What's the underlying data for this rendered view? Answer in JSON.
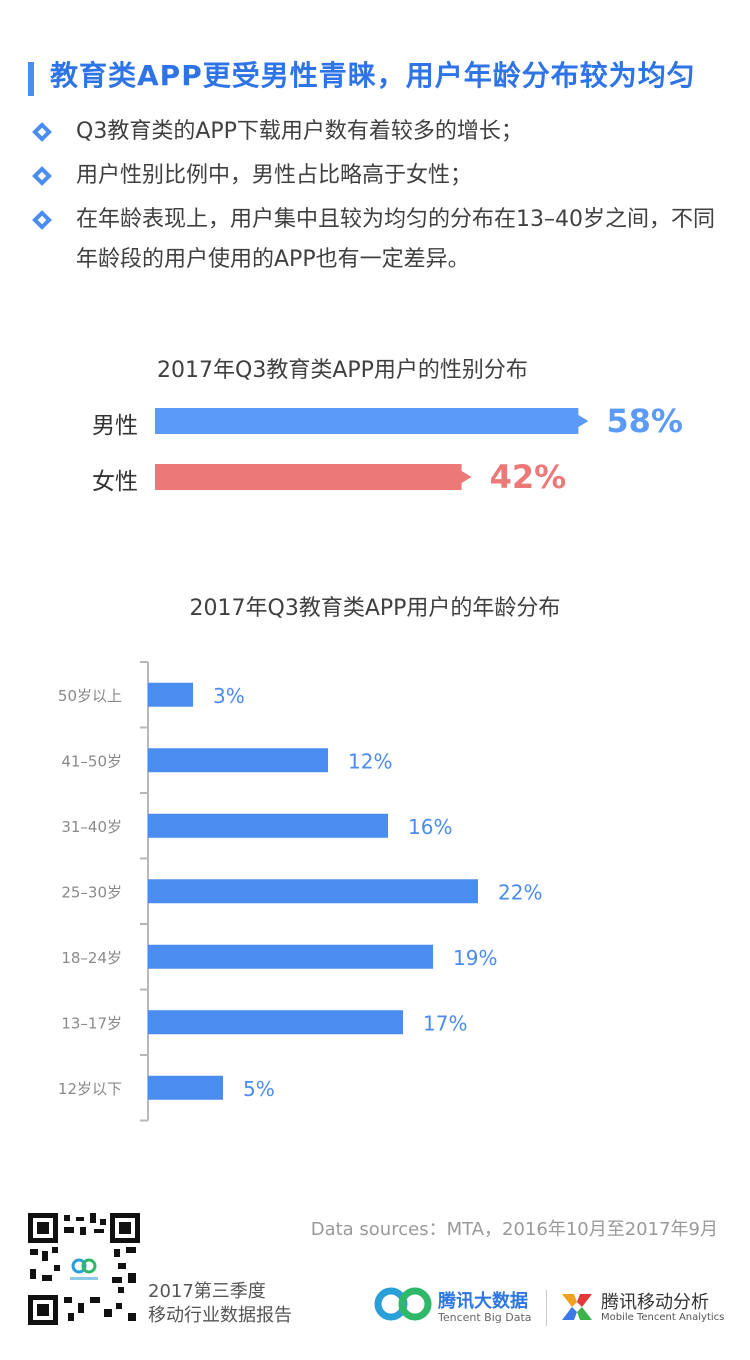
{
  "header": {
    "title": "教育类APP更受男性青睐，用户年龄分布较为均匀",
    "bullets": [
      "Q3教育类的APP下载用户数有着较多的增长；",
      "用户性别比例中，男性占比略高于女性；",
      "在年龄表现上，用户集中且较为均匀的分布在13–40岁之间，不同年龄段的用户使用的APP也有一定差异。"
    ]
  },
  "chart_data": [
    {
      "type": "bar",
      "title": "2017年Q3教育类APP用户的性别分布",
      "categories": [
        "男性",
        "女性"
      ],
      "values": [
        58,
        42
      ],
      "value_labels": [
        "58%",
        "42%"
      ],
      "colors": [
        "#5b9bf7",
        "#ec7878"
      ],
      "orientation": "horizontal"
    },
    {
      "type": "bar",
      "title": "2017年Q3教育类APP用户的年龄分布",
      "categories": [
        "50岁以上",
        "41–50岁",
        "31–40岁",
        "25–30岁",
        "18–24岁",
        "13–17岁",
        "12岁以下"
      ],
      "values": [
        3,
        12,
        16,
        22,
        19,
        17,
        5
      ],
      "value_labels": [
        "3%",
        "12%",
        "16%",
        "22%",
        "19%",
        "17%",
        "5%"
      ],
      "color": "#4a8cf0",
      "orientation": "horizontal"
    }
  ],
  "footer": {
    "source": "Data sources：MTA，2016年10月至2017年9月",
    "report_line1": "2017第三季度",
    "report_line2": "移动行业数据报告",
    "logo1_name": "腾讯大数据",
    "logo1_sub": "Tencent Big Data",
    "logo2_name": "腾讯移动分析",
    "logo2_sub": "Mobile Tencent Analytics"
  },
  "colors": {
    "accent": "#2f74e6",
    "male": "#5b9bf7",
    "female": "#ec7878",
    "bar": "#4a8cf0"
  }
}
